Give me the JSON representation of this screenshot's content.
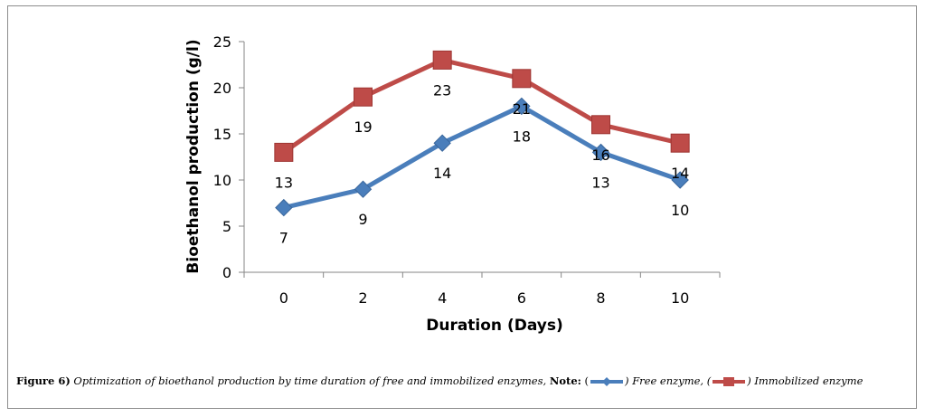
{
  "chart_data": {
    "type": "line",
    "title": "",
    "xlabel": "Duration (Days)",
    "ylabel": "Bioethanol production (g/l)",
    "categories": [
      "0",
      "2",
      "4",
      "6",
      "8",
      "10"
    ],
    "ylim": [
      0,
      25
    ],
    "yticks": [
      "0",
      "5",
      "10",
      "15",
      "20",
      "25"
    ],
    "grid": false,
    "series": [
      {
        "name": "Free enzyme",
        "color": "#4a7ebb",
        "marker": "diamond",
        "values": [
          7,
          9,
          14,
          18,
          13,
          10
        ]
      },
      {
        "name": "Immobilized enzyme",
        "color": "#be4b48",
        "marker": "square",
        "values": [
          13,
          19,
          23,
          21,
          16,
          14
        ]
      }
    ]
  },
  "caption": {
    "figure_label": "Figure 6)",
    "text": "Optimization of bioethanol production by time duration of free and immobilized enzymes,",
    "note_label": "Note:",
    "open1": "(",
    "legend1": ") Free enzyme, (",
    "legend2": ") Immobilized enzyme"
  }
}
